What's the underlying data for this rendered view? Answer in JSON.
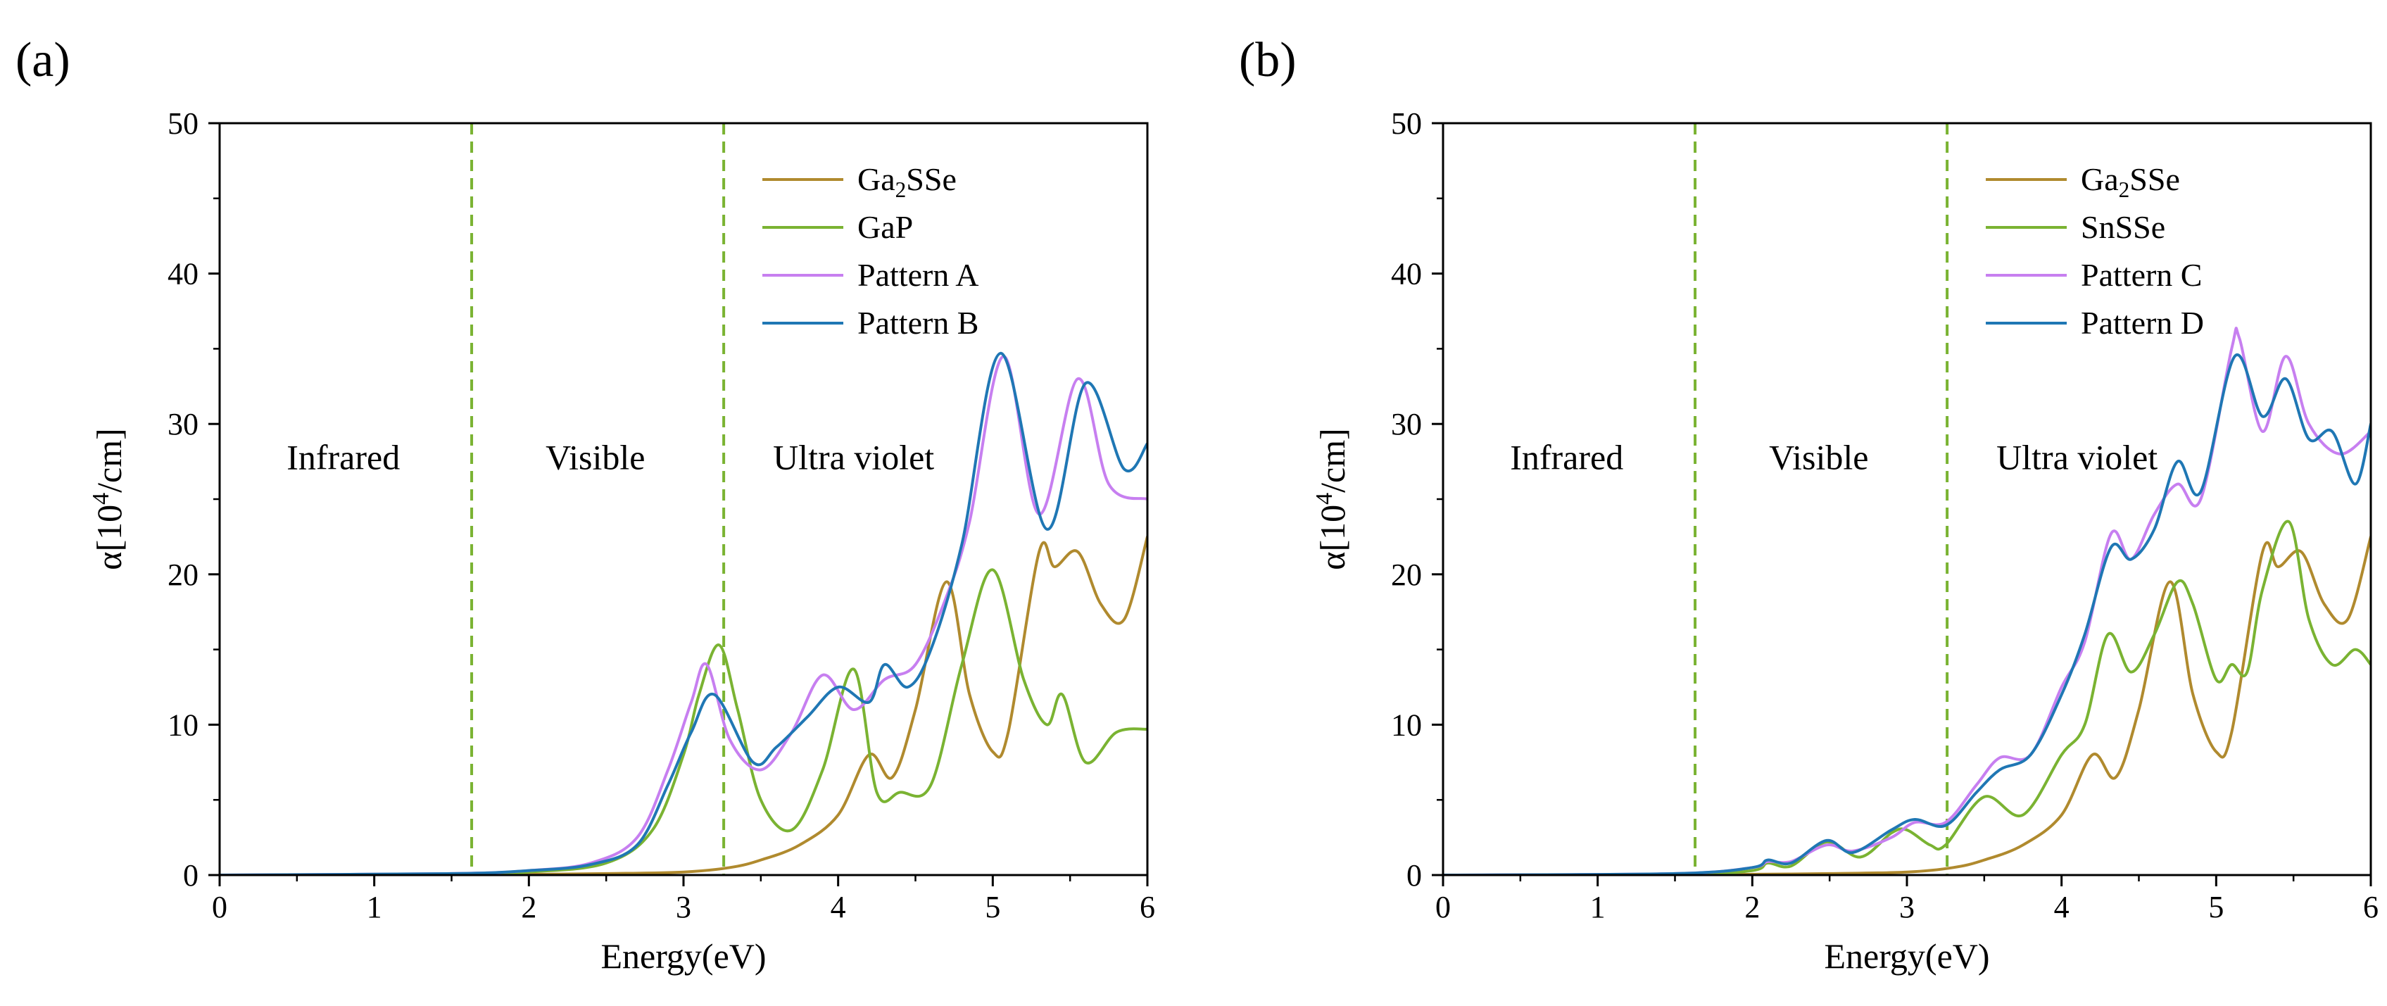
{
  "chart_data": [
    {
      "panel_label": "(a)",
      "type": "line",
      "xlabel": "Energy(eV)",
      "ylabel_parts": [
        "α[10",
        "4",
        "/cm]"
      ],
      "xlim": [
        0,
        6
      ],
      "ylim": [
        0,
        50
      ],
      "xticks": [
        0,
        1,
        2,
        3,
        4,
        5,
        6
      ],
      "yticks": [
        0,
        10,
        20,
        30,
        40,
        50
      ],
      "vlines": [
        1.63,
        3.26
      ],
      "region_labels": [
        {
          "text": "Infrared",
          "x": 0.8,
          "y": 27
        },
        {
          "text": "Visible",
          "x": 2.43,
          "y": 27
        },
        {
          "text": "Ultra violet",
          "x": 4.1,
          "y": 27
        }
      ],
      "legend_position": "top-right",
      "series": [
        {
          "name": "Ga2SSe",
          "label_parts": [
            "Ga",
            "2",
            "SSe"
          ],
          "color": "#b08a2e",
          "x": [
            0,
            1.5,
            2.0,
            2.5,
            3.0,
            3.3,
            3.5,
            3.75,
            4.0,
            4.2,
            4.35,
            4.5,
            4.7,
            4.85,
            5.0,
            5.1,
            5.3,
            5.4,
            5.55,
            5.7,
            5.85,
            6.0
          ],
          "y": [
            0,
            0,
            0.05,
            0.1,
            0.2,
            0.5,
            1.0,
            2.0,
            4.0,
            8.0,
            6.5,
            11.0,
            19.5,
            12.0,
            8.2,
            9.5,
            21.5,
            20.5,
            21.5,
            18.0,
            17.0,
            22.5
          ]
        },
        {
          "name": "GaP",
          "label_parts": [
            "GaP"
          ],
          "color": "#7ab332",
          "x": [
            0,
            1.5,
            2.0,
            2.5,
            2.8,
            3.0,
            3.1,
            3.23,
            3.35,
            3.5,
            3.7,
            3.9,
            4.1,
            4.25,
            4.4,
            4.6,
            4.8,
            5.0,
            5.2,
            5.35,
            5.45,
            5.6,
            5.8,
            6.0
          ],
          "y": [
            0,
            0,
            0.2,
            0.8,
            3.0,
            8.0,
            12.0,
            15.3,
            11.0,
            5.0,
            3.0,
            7.0,
            13.7,
            5.5,
            5.5,
            6.0,
            14.0,
            20.3,
            13.0,
            10.0,
            12.0,
            7.5,
            9.5,
            9.7
          ]
        },
        {
          "name": "Pattern A",
          "label_parts": [
            "Pattern A"
          ],
          "color": "#c77ff0",
          "x": [
            0,
            1.5,
            2.0,
            2.4,
            2.7,
            2.9,
            3.05,
            3.15,
            3.3,
            3.5,
            3.7,
            3.9,
            4.1,
            4.3,
            4.5,
            4.7,
            4.85,
            5.07,
            5.3,
            5.55,
            5.75,
            6.0
          ],
          "y": [
            0,
            0.1,
            0.3,
            0.8,
            2.5,
            7.0,
            11.5,
            14.0,
            9.0,
            7.0,
            9.5,
            13.3,
            11.0,
            13.0,
            14.0,
            18.5,
            23.5,
            34.5,
            24.0,
            33.0,
            26.0,
            25.0
          ]
        },
        {
          "name": "Pattern B",
          "label_parts": [
            "Pattern B"
          ],
          "color": "#1f77b4",
          "x": [
            0,
            1.5,
            2.0,
            2.4,
            2.7,
            2.9,
            3.05,
            3.2,
            3.45,
            3.6,
            3.8,
            4.0,
            4.2,
            4.3,
            4.45,
            4.6,
            4.8,
            5.05,
            5.35,
            5.6,
            5.85,
            6.0
          ],
          "y": [
            0,
            0.1,
            0.3,
            0.7,
            2.0,
            6.0,
            9.5,
            12.0,
            7.5,
            8.5,
            10.5,
            12.5,
            11.5,
            14.0,
            12.5,
            15.0,
            22.0,
            34.7,
            23.0,
            32.7,
            27.0,
            28.7
          ]
        }
      ]
    },
    {
      "panel_label": "(b)",
      "type": "line",
      "xlabel": "Energy(eV)",
      "ylabel_parts": [
        "α[10",
        "4",
        "/cm]"
      ],
      "xlim": [
        0,
        6
      ],
      "ylim": [
        0,
        50
      ],
      "xticks": [
        0,
        1,
        2,
        3,
        4,
        5,
        6
      ],
      "yticks": [
        0,
        10,
        20,
        30,
        40,
        50
      ],
      "vlines": [
        1.63,
        3.26
      ],
      "region_labels": [
        {
          "text": "Infrared",
          "x": 0.8,
          "y": 27
        },
        {
          "text": "Visible",
          "x": 2.43,
          "y": 27
        },
        {
          "text": "Ultra violet",
          "x": 4.1,
          "y": 27
        }
      ],
      "legend_position": "top-right",
      "series": [
        {
          "name": "Ga2SSe",
          "label_parts": [
            "Ga",
            "2",
            "SSe"
          ],
          "color": "#b08a2e",
          "x": [
            0,
            1.5,
            2.0,
            2.5,
            3.0,
            3.3,
            3.5,
            3.75,
            4.0,
            4.2,
            4.35,
            4.5,
            4.7,
            4.85,
            5.0,
            5.1,
            5.3,
            5.4,
            5.55,
            5.7,
            5.85,
            6.0
          ],
          "y": [
            0,
            0,
            0.05,
            0.1,
            0.2,
            0.5,
            1.0,
            2.0,
            4.0,
            8.0,
            6.5,
            11.0,
            19.5,
            12.0,
            8.2,
            9.5,
            21.5,
            20.5,
            21.5,
            18.0,
            17.0,
            22.5
          ]
        },
        {
          "name": "SnSSe",
          "label_parts": [
            "SnSSe"
          ],
          "color": "#7ab332",
          "x": [
            0,
            1.5,
            2.0,
            2.1,
            2.25,
            2.48,
            2.7,
            2.9,
            3.0,
            3.15,
            3.25,
            3.5,
            3.75,
            4.0,
            4.15,
            4.3,
            4.45,
            4.6,
            4.75,
            4.85,
            5.0,
            5.1,
            5.2,
            5.3,
            5.47,
            5.6,
            5.75,
            5.9,
            6.0
          ],
          "y": [
            0,
            0,
            0.3,
            0.8,
            0.6,
            2.2,
            1.2,
            2.8,
            3.0,
            2.0,
            2.0,
            5.2,
            4.0,
            8.0,
            10.0,
            16.0,
            13.5,
            16.0,
            19.5,
            18.0,
            13.0,
            14.0,
            13.5,
            19.0,
            23.5,
            17.0,
            14.0,
            15.0,
            14.0
          ]
        },
        {
          "name": "Pattern C",
          "label_parts": [
            "Pattern C"
          ],
          "color": "#c77ff0",
          "x": [
            0,
            1.5,
            2.0,
            2.1,
            2.25,
            2.48,
            2.65,
            2.9,
            3.05,
            3.25,
            3.45,
            3.6,
            3.8,
            4.0,
            4.15,
            4.32,
            4.45,
            4.6,
            4.75,
            4.9,
            5.1,
            5.15,
            5.3,
            5.45,
            5.6,
            5.8,
            6.0
          ],
          "y": [
            0,
            0.1,
            0.5,
            0.9,
            0.9,
            2.0,
            1.6,
            2.5,
            3.5,
            3.5,
            6.0,
            7.8,
            8.0,
            12.5,
            15.5,
            22.7,
            21.0,
            24.0,
            26.0,
            25.0,
            35.0,
            35.7,
            29.5,
            34.5,
            30.0,
            28.0,
            29.5
          ]
        },
        {
          "name": "Pattern D",
          "label_parts": [
            "Pattern D"
          ],
          "color": "#1f77b4",
          "x": [
            0,
            1.5,
            2.0,
            2.1,
            2.25,
            2.48,
            2.65,
            2.9,
            3.05,
            3.25,
            3.45,
            3.6,
            3.8,
            4.0,
            4.15,
            4.32,
            4.45,
            4.6,
            4.75,
            4.9,
            5.12,
            5.3,
            5.45,
            5.6,
            5.75,
            5.9,
            6.0
          ],
          "y": [
            0,
            0.1,
            0.5,
            1.0,
            0.8,
            2.3,
            1.5,
            3.0,
            3.7,
            3.3,
            5.5,
            7.0,
            8.0,
            12.0,
            16.0,
            21.8,
            21.0,
            23.0,
            27.5,
            25.5,
            34.5,
            30.5,
            33.0,
            29.0,
            29.5,
            26.0,
            30.0
          ]
        }
      ]
    }
  ]
}
